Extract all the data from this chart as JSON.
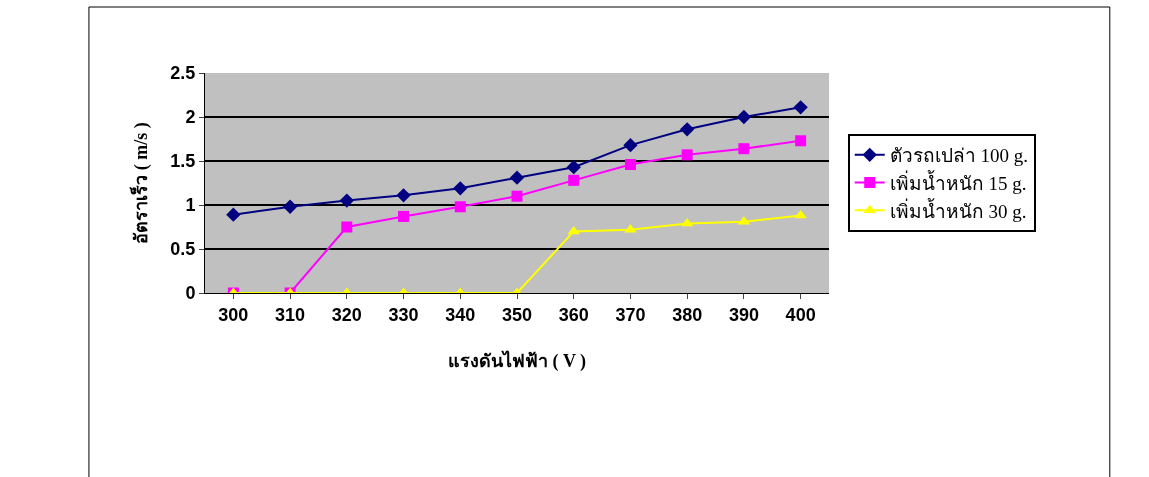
{
  "chart_data": {
    "type": "line",
    "xlabel": "แรงดันไฟฟ้า ( V )",
    "ylabel": "อัตราเร็ว ( m/s )",
    "categories": [
      "300",
      "310",
      "320",
      "330",
      "340",
      "350",
      "360",
      "370",
      "380",
      "390",
      "400"
    ],
    "series": [
      {
        "name": "ตัวรถเปล่า 100 g.",
        "color": "#000080",
        "marker": "diamond",
        "values": [
          0.89,
          0.98,
          1.05,
          1.11,
          1.19,
          1.31,
          1.43,
          1.68,
          1.86,
          2.0,
          2.11
        ]
      },
      {
        "name": "เพิ่มน้ำหนัก 15 g.",
        "color": "#ff00ff",
        "marker": "square",
        "values": [
          0,
          0,
          0.75,
          0.87,
          0.98,
          1.1,
          1.28,
          1.46,
          1.57,
          1.64,
          1.73
        ]
      },
      {
        "name": "เพิ่มน้ำหนัก 30 g.",
        "color": "#ffff00",
        "marker": "triangle",
        "values": [
          0,
          0,
          0,
          0,
          0,
          0,
          0.7,
          0.72,
          0.79,
          0.81,
          0.88
        ]
      }
    ],
    "ylim": [
      0,
      2.5
    ],
    "yticks": [
      0,
      0.5,
      1,
      1.5,
      2,
      2.5
    ],
    "grid": "y",
    "legend": "right",
    "line_style": "solid"
  }
}
